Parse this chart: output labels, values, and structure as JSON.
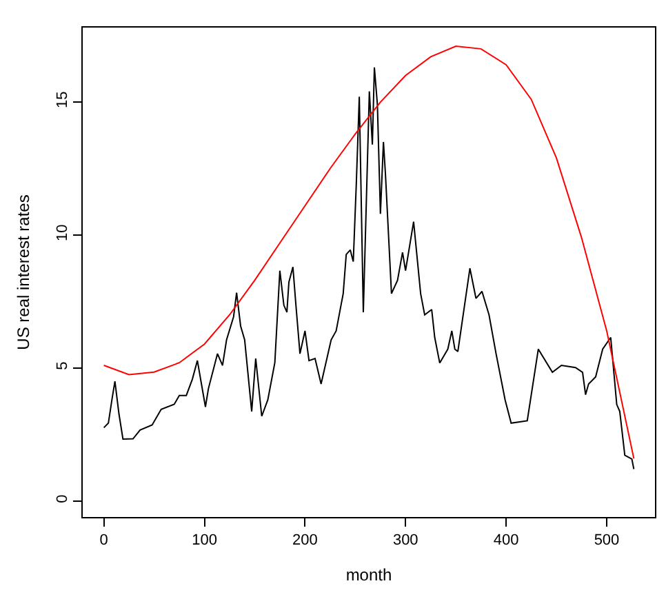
{
  "chart_data": {
    "type": "line",
    "xlabel": "month",
    "ylabel": "US real interest rates",
    "xlim": [
      -21,
      548
    ],
    "ylim": [
      -0.6,
      17.8
    ],
    "xticks": [
      0,
      100,
      200,
      300,
      400,
      500
    ],
    "yticks": [
      0,
      5,
      10,
      15
    ],
    "legend": false,
    "marker": "none",
    "line_style": "solid",
    "series": [
      {
        "color": "#000000",
        "x": [
          0,
          4.5,
          8,
          11,
          15,
          19,
          29,
          36,
          48,
          57,
          70,
          75,
          82,
          88,
          93,
          101,
          104,
          113,
          118,
          122,
          129,
          132,
          136,
          140,
          147,
          151,
          157,
          163,
          170,
          175,
          179,
          182,
          184,
          188,
          191,
          195,
          200,
          204,
          210,
          216,
          226,
          231,
          238,
          241,
          245,
          248,
          251,
          254,
          258,
          264,
          267,
          269,
          272,
          275,
          278,
          280,
          286,
          292,
          297,
          300,
          308,
          315,
          319,
          326,
          329,
          334,
          342,
          346,
          349,
          352,
          364,
          370,
          376,
          383,
          390,
          399,
          405,
          421,
          432,
          446,
          455,
          469,
          476,
          479,
          482,
          489,
          496,
          504,
          510,
          513,
          518,
          525,
          527
        ],
        "values": [
          2.76,
          2.93,
          3.8,
          4.5,
          3.28,
          2.33,
          2.34,
          2.67,
          2.86,
          3.45,
          3.64,
          3.97,
          3.97,
          4.58,
          5.28,
          3.54,
          4.23,
          5.54,
          5.1,
          6.06,
          6.93,
          7.83,
          6.58,
          6.06,
          3.37,
          5.36,
          3.19,
          3.8,
          5.2,
          8.66,
          7.36,
          7.1,
          8.23,
          8.8,
          7.36,
          5.54,
          6.4,
          5.28,
          5.36,
          4.4,
          6.06,
          6.4,
          7.8,
          9.27,
          9.44,
          9.0,
          11.9,
          15.2,
          7.1,
          15.4,
          13.4,
          16.3,
          14.9,
          10.8,
          13.5,
          12.3,
          7.8,
          8.3,
          9.35,
          8.66,
          10.5,
          7.8,
          7.0,
          7.2,
          6.15,
          5.19,
          5.71,
          6.4,
          5.71,
          5.62,
          8.75,
          7.62,
          7.88,
          7.0,
          5.54,
          3.8,
          2.93,
          3.02,
          5.71,
          4.84,
          5.1,
          5.02,
          4.84,
          4.0,
          4.4,
          4.67,
          5.71,
          6.15,
          3.63,
          3.37,
          1.72,
          1.58,
          1.2
        ]
      },
      {
        "color": "#ff0000",
        "x": [
          0,
          25,
          50,
          75,
          100,
          125,
          150,
          175,
          200,
          225,
          250,
          275,
          300,
          325,
          350,
          375,
          400,
          425,
          450,
          475,
          500,
          527
        ],
        "values": [
          5.1,
          4.75,
          4.85,
          5.2,
          5.9,
          7.0,
          8.3,
          9.7,
          11.1,
          12.5,
          13.8,
          15.0,
          16.0,
          16.7,
          17.1,
          17.0,
          16.4,
          15.1,
          12.9,
          9.9,
          6.4,
          1.6
        ]
      }
    ]
  }
}
